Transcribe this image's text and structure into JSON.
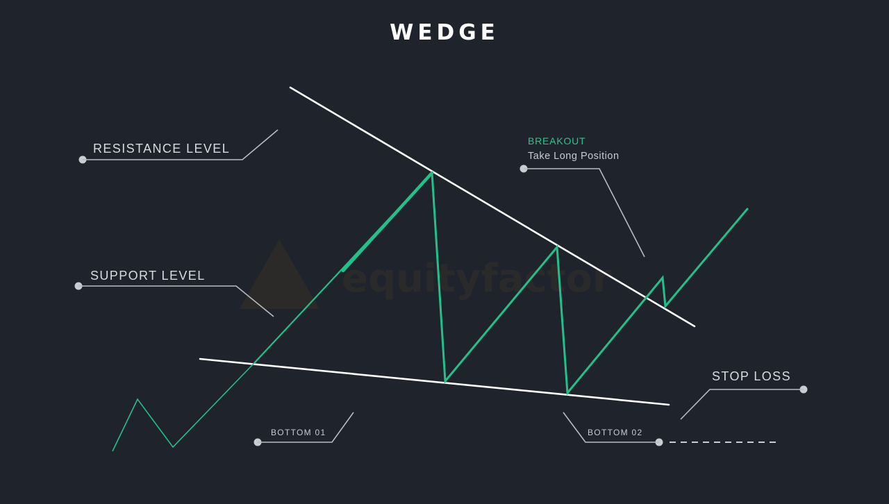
{
  "title": "WEDGE",
  "watermark": {
    "brand": "equityfactor",
    "icon": "triangle-logo-icon"
  },
  "labels": {
    "resistance": "RESISTANCE LEVEL",
    "support": "SUPPORT LEVEL",
    "breakout": "BREAKOUT",
    "breakout_action": "Take Long Position",
    "stop_loss": "STOP LOSS",
    "bottom_01": "BOTTOM 01",
    "bottom_02": "BOTTOM 02"
  },
  "colors": {
    "background": "#1f232c",
    "price_line": "#22c189",
    "breakout_text": "#2ec48e",
    "trend_lines": "#ffffff",
    "leader_lines": "#b9bcc3"
  }
}
